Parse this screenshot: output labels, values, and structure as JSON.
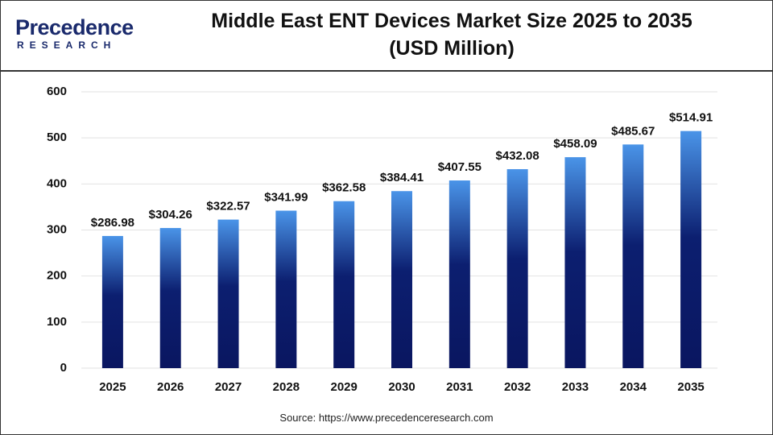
{
  "chart_data": {
    "type": "bar",
    "logo": {
      "name": "Precedence",
      "tagline": "RESEARCH"
    },
    "title": "Middle East ENT Devices Market Size 2025 to 2035 (USD Million)",
    "categories": [
      "2025",
      "2026",
      "2027",
      "2028",
      "2029",
      "2030",
      "2031",
      "2032",
      "2033",
      "2034",
      "2035"
    ],
    "values": [
      286.98,
      304.26,
      322.57,
      341.99,
      362.58,
      384.41,
      407.55,
      432.08,
      458.09,
      485.67,
      514.91
    ],
    "value_labels": [
      "$286.98",
      "$304.26",
      "$322.57",
      "$341.99",
      "$362.58",
      "$384.41",
      "$407.55",
      "$432.08",
      "$458.09",
      "$485.67",
      "$514.91"
    ],
    "ylim": [
      0,
      600
    ],
    "yticks": [
      0,
      100,
      200,
      300,
      400,
      500,
      600
    ],
    "grid": true,
    "source": "Source: https://www.precedenceresearch.com"
  }
}
